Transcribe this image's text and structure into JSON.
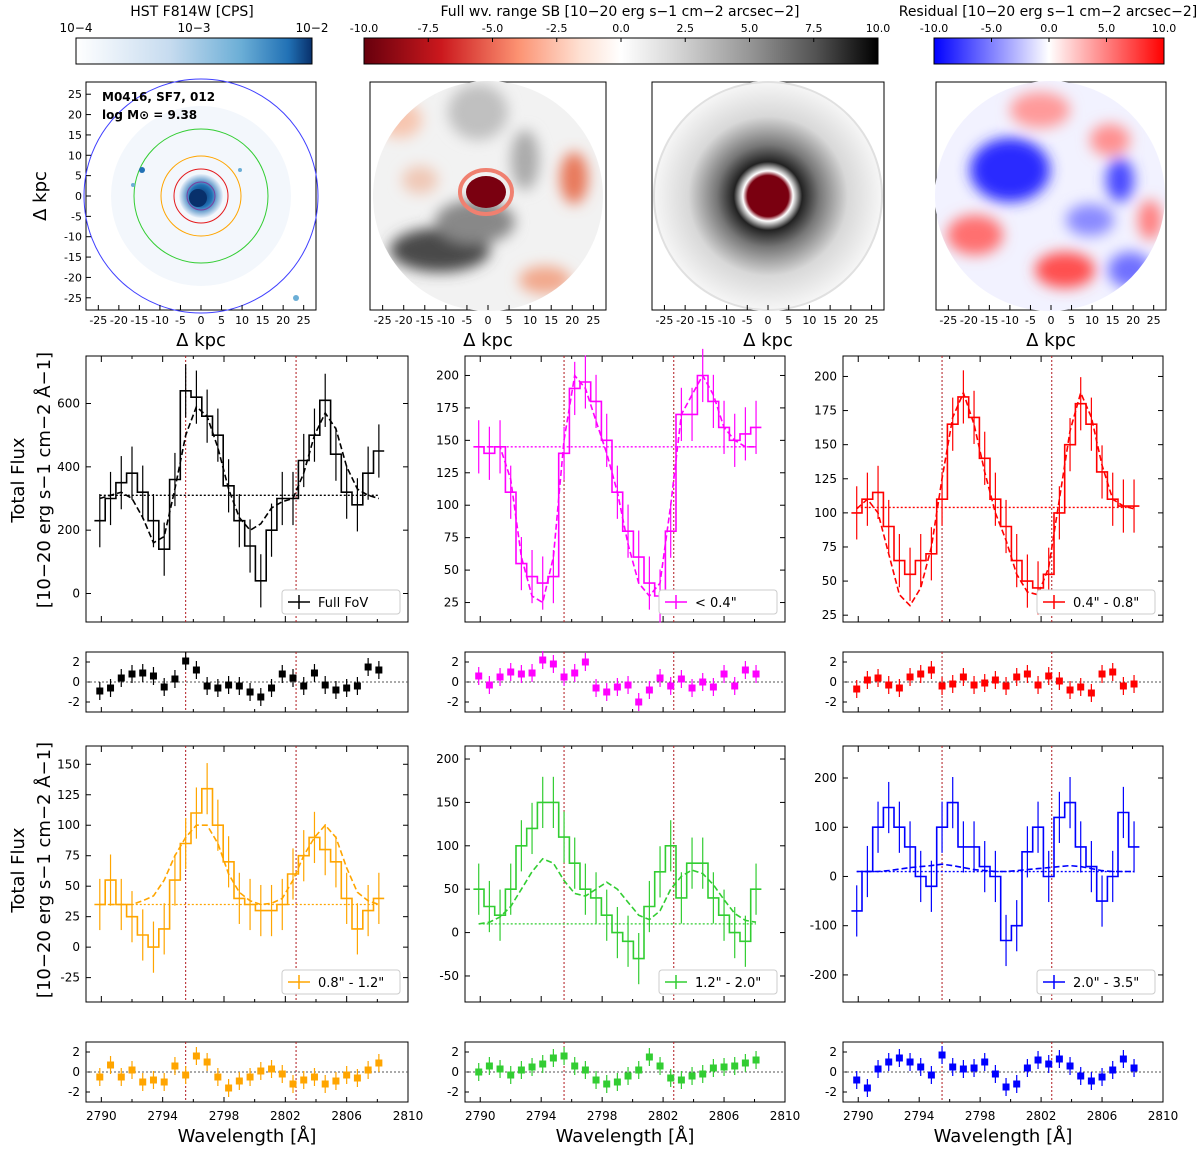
{
  "figure": {
    "colorbars": [
      {
        "id": "hst",
        "title": "HST F814W [CPS]",
        "ticks": [
          "10−4",
          "10−3",
          "10−2"
        ],
        "colors": [
          "#ffffff",
          "#c6dbef",
          "#6baed6",
          "#2171b5",
          "#08306b"
        ]
      },
      {
        "id": "sb",
        "title": "Full wv. range SB [10−20 erg s−1 cm−2 arcsec−2]",
        "ticks": [
          "-10.0",
          "-7.5",
          "-5.0",
          "-2.5",
          "0.0",
          "2.5",
          "5.0",
          "7.5",
          "10.0"
        ],
        "colors": [
          "#67000d",
          "#cb181d",
          "#fc9272",
          "#fee0d2",
          "#ffffff",
          "#d9d9d9",
          "#969696",
          "#525252",
          "#000000"
        ]
      },
      {
        "id": "resid",
        "title": "Residual [10−20 erg s−1 cm−2 arcsec−2]",
        "ticks": [
          "-10.0",
          "-5.0",
          "0.0",
          "5.0",
          "10.0"
        ],
        "colors": [
          "#0000ff",
          "#8080ff",
          "#ffffff",
          "#ff8080",
          "#ff0000"
        ]
      }
    ],
    "maps": {
      "galaxy_label_1": "M0416, SF7, 012",
      "galaxy_label_2": "log M⊙ = 9.38",
      "xlabel": "Δ kpc",
      "ylabel": "Δ kpc",
      "ticks": [
        "-25",
        "-20",
        "-15",
        "-10",
        "-5",
        "0",
        "5",
        "10",
        "15",
        "20",
        "25"
      ],
      "aperture_colors": [
        "#e41a1c",
        "#ffa500",
        "#32cd32",
        "#4040ff"
      ]
    },
    "ylabel_line1": "Total Flux",
    "ylabel_line2": "[10−20 erg s−1 cm−2 Å−1]",
    "xlabel": "Wavelength [Å]",
    "x_ticks": [
      "2790",
      "2794",
      "2798",
      "2802",
      "2806",
      "2810"
    ]
  },
  "chart_data": [
    {
      "type": "line",
      "panel": "full-fov",
      "legend": "Full FoV",
      "color": "#000000",
      "x": [
        2789.9,
        2790.6,
        2791.3,
        2792.0,
        2792.7,
        2793.4,
        2794.1,
        2794.8,
        2795.5,
        2796.2,
        2796.9,
        2797.6,
        2798.3,
        2799.0,
        2799.7,
        2800.4,
        2801.1,
        2801.8,
        2802.5,
        2803.2,
        2803.9,
        2804.6,
        2805.3,
        2806.0,
        2806.7,
        2807.4,
        2808.1
      ],
      "values": [
        230,
        300,
        350,
        380,
        320,
        230,
        140,
        360,
        640,
        620,
        560,
        500,
        340,
        230,
        150,
        40,
        200,
        300,
        300,
        420,
        500,
        610,
        440,
        320,
        280,
        380,
        450
      ],
      "model": [
        300,
        310,
        320,
        300,
        240,
        160,
        180,
        330,
        500,
        590,
        560,
        460,
        330,
        240,
        200,
        220,
        270,
        290,
        300,
        380,
        500,
        570,
        520,
        400,
        330,
        310,
        300
      ],
      "baseline": 310,
      "ylim": [
        -90,
        750
      ],
      "yticks": [
        0,
        200,
        400,
        600
      ],
      "residuals": [
        -0.9,
        -0.6,
        0.4,
        0.8,
        0.9,
        0.6,
        -0.5,
        0.3,
        2.1,
        1.2,
        -0.4,
        -0.6,
        -0.3,
        -0.4,
        -1.0,
        -1.5,
        -0.6,
        0.8,
        0.4,
        -0.4,
        0.9,
        -0.3,
        -0.8,
        -0.6,
        -0.4,
        1.5,
        1.2
      ]
    },
    {
      "type": "line",
      "panel": "lt-04",
      "legend": "< 0.4\"",
      "color": "#ff00ff",
      "x": [
        2789.9,
        2790.6,
        2791.3,
        2792.0,
        2792.7,
        2793.4,
        2794.1,
        2794.8,
        2795.5,
        2796.2,
        2796.9,
        2797.6,
        2798.3,
        2799.0,
        2799.7,
        2800.4,
        2801.1,
        2801.8,
        2802.5,
        2803.2,
        2803.9,
        2804.6,
        2805.3,
        2806.0,
        2806.7,
        2807.4,
        2808.1
      ],
      "values": [
        145,
        140,
        145,
        110,
        55,
        45,
        40,
        45,
        140,
        190,
        195,
        180,
        150,
        110,
        80,
        60,
        40,
        30,
        80,
        170,
        170,
        200,
        180,
        160,
        150,
        155,
        160
      ],
      "model": [
        145,
        145,
        145,
        120,
        60,
        30,
        25,
        60,
        150,
        200,
        190,
        165,
        140,
        110,
        70,
        40,
        30,
        40,
        100,
        170,
        185,
        200,
        185,
        160,
        150,
        145,
        145
      ],
      "baseline": 145,
      "ylim": [
        10,
        215
      ],
      "yticks": [
        25,
        50,
        75,
        100,
        125,
        150,
        175,
        200
      ],
      "residuals": [
        0.6,
        -0.3,
        0.5,
        1.0,
        0.8,
        0.9,
        2.2,
        1.8,
        0.5,
        0.9,
        2.0,
        -0.6,
        -1.0,
        -0.5,
        -0.3,
        -2.0,
        -0.8,
        0.4,
        -0.4,
        0.3,
        -0.6,
        0.0,
        -0.5,
        0.8,
        -0.4,
        1.2,
        0.8
      ]
    },
    {
      "type": "line",
      "panel": "04-08",
      "legend": "0.4\" - 0.8\"",
      "color": "#ff0000",
      "x": [
        2789.9,
        2790.6,
        2791.3,
        2792.0,
        2792.7,
        2793.4,
        2794.1,
        2794.8,
        2795.5,
        2796.2,
        2796.9,
        2797.6,
        2798.3,
        2799.0,
        2799.7,
        2800.4,
        2801.1,
        2801.8,
        2802.5,
        2803.2,
        2803.9,
        2804.6,
        2805.3,
        2806.0,
        2806.7,
        2807.4,
        2808.1
      ],
      "values": [
        100,
        110,
        115,
        90,
        65,
        55,
        65,
        70,
        110,
        165,
        185,
        170,
        140,
        110,
        90,
        65,
        50,
        45,
        55,
        100,
        150,
        180,
        165,
        130,
        110,
        105,
        105
      ],
      "model": [
        103,
        110,
        100,
        70,
        40,
        32,
        45,
        75,
        125,
        170,
        188,
        165,
        130,
        100,
        80,
        55,
        42,
        40,
        60,
        110,
        160,
        188,
        170,
        135,
        110,
        105,
        103
      ],
      "baseline": 104,
      "ylim": [
        20,
        215
      ],
      "yticks": [
        25,
        50,
        75,
        100,
        125,
        150,
        175,
        200
      ],
      "residuals": [
        -0.7,
        0.2,
        0.4,
        -0.3,
        -0.6,
        0.5,
        0.8,
        1.2,
        -0.4,
        -0.2,
        0.5,
        -0.3,
        -0.1,
        0.2,
        -0.4,
        0.5,
        0.8,
        -0.3,
        0.6,
        0.1,
        -0.8,
        -0.5,
        -1.1,
        0.8,
        1.0,
        -0.4,
        -0.2
      ]
    },
    {
      "type": "line",
      "panel": "08-12",
      "legend": "0.8\" - 1.2\"",
      "color": "#ffa500",
      "x": [
        2789.9,
        2790.6,
        2791.3,
        2792.0,
        2792.7,
        2793.4,
        2794.1,
        2794.8,
        2795.5,
        2796.2,
        2796.9,
        2797.6,
        2798.3,
        2799.0,
        2799.7,
        2800.4,
        2801.1,
        2801.8,
        2802.5,
        2803.2,
        2803.9,
        2804.6,
        2805.3,
        2806.0,
        2806.7,
        2807.4,
        2808.1
      ],
      "values": [
        35,
        55,
        35,
        25,
        10,
        0,
        15,
        55,
        85,
        110,
        130,
        100,
        70,
        40,
        35,
        30,
        30,
        35,
        60,
        75,
        90,
        80,
        70,
        40,
        15,
        30,
        40
      ],
      "model": [
        35,
        35,
        35,
        35,
        38,
        42,
        55,
        75,
        90,
        100,
        100,
        85,
        60,
        45,
        38,
        35,
        36,
        40,
        55,
        75,
        90,
        100,
        90,
        65,
        45,
        38,
        35
      ],
      "baseline": 35,
      "ylim": [
        -45,
        165
      ],
      "yticks": [
        -25,
        0,
        25,
        50,
        75,
        100,
        125,
        150
      ],
      "residuals": [
        -0.5,
        0.7,
        -0.5,
        0.2,
        -1.0,
        -0.8,
        -1.0,
        0.6,
        -0.3,
        1.6,
        1.0,
        -0.5,
        -1.6,
        -0.9,
        -0.5,
        0.1,
        0.3,
        -0.2,
        -1.2,
        -0.8,
        -0.5,
        -1.2,
        -0.9,
        -0.3,
        -0.6,
        0.2,
        0.9
      ]
    },
    {
      "type": "line",
      "panel": "12-20",
      "legend": "1.2\" - 2.0\"",
      "color": "#32cd32",
      "x": [
        2789.9,
        2790.6,
        2791.3,
        2792.0,
        2792.7,
        2793.4,
        2794.1,
        2794.8,
        2795.5,
        2796.2,
        2796.9,
        2797.6,
        2798.3,
        2799.0,
        2799.7,
        2800.4,
        2801.1,
        2801.8,
        2802.5,
        2803.2,
        2803.9,
        2804.6,
        2805.3,
        2806.0,
        2806.7,
        2807.4,
        2808.1
      ],
      "values": [
        50,
        30,
        20,
        50,
        100,
        120,
        150,
        150,
        110,
        80,
        50,
        40,
        20,
        0,
        -10,
        -30,
        30,
        70,
        100,
        40,
        80,
        80,
        40,
        20,
        0,
        -10,
        50
      ],
      "model": [
        10,
        12,
        18,
        30,
        50,
        70,
        85,
        80,
        60,
        45,
        42,
        50,
        58,
        50,
        35,
        20,
        15,
        25,
        50,
        65,
        72,
        68,
        55,
        38,
        22,
        14,
        12
      ],
      "baseline": 10,
      "ylim": [
        -80,
        215
      ],
      "yticks": [
        -50,
        0,
        50,
        100,
        150,
        200
      ],
      "residuals": [
        0.0,
        0.6,
        0.3,
        -0.3,
        0.2,
        0.5,
        0.8,
        1.4,
        1.6,
        0.6,
        0.2,
        -0.8,
        -1.2,
        -1.0,
        -0.4,
        0.2,
        1.5,
        0.6,
        -0.6,
        -0.8,
        -0.4,
        -0.2,
        0.4,
        0.5,
        0.6,
        0.9,
        1.2
      ]
    },
    {
      "type": "line",
      "panel": "20-35",
      "legend": "2.0\" - 3.5\"",
      "color": "#0000ff",
      "x": [
        2789.9,
        2790.6,
        2791.3,
        2792.0,
        2792.7,
        2793.4,
        2794.1,
        2794.8,
        2795.5,
        2796.2,
        2796.9,
        2797.6,
        2798.3,
        2799.0,
        2799.7,
        2800.4,
        2801.1,
        2801.8,
        2802.5,
        2803.2,
        2803.9,
        2804.6,
        2805.3,
        2806.0,
        2806.7,
        2807.4,
        2808.1
      ],
      "values": [
        -70,
        10,
        100,
        140,
        100,
        60,
        0,
        -20,
        100,
        150,
        60,
        60,
        20,
        0,
        -130,
        -100,
        50,
        100,
        0,
        120,
        150,
        60,
        20,
        -50,
        0,
        130,
        60
      ],
      "model": [
        10,
        10,
        10,
        12,
        15,
        18,
        20,
        22,
        25,
        22,
        18,
        14,
        12,
        10,
        10,
        12,
        14,
        16,
        18,
        20,
        22,
        20,
        16,
        12,
        10,
        10,
        10
      ],
      "baseline": 10,
      "ylim": [
        -255,
        265
      ],
      "yticks": [
        -200,
        -100,
        0,
        100,
        200
      ],
      "residuals": [
        -0.8,
        -1.6,
        0.3,
        1.0,
        1.4,
        1.0,
        0.5,
        -0.3,
        1.7,
        0.5,
        0.3,
        0.4,
        1.0,
        -0.2,
        -1.5,
        -1.2,
        0.4,
        1.2,
        0.8,
        1.3,
        0.6,
        -0.4,
        -0.9,
        -0.5,
        0.2,
        1.3,
        0.4
      ]
    }
  ]
}
